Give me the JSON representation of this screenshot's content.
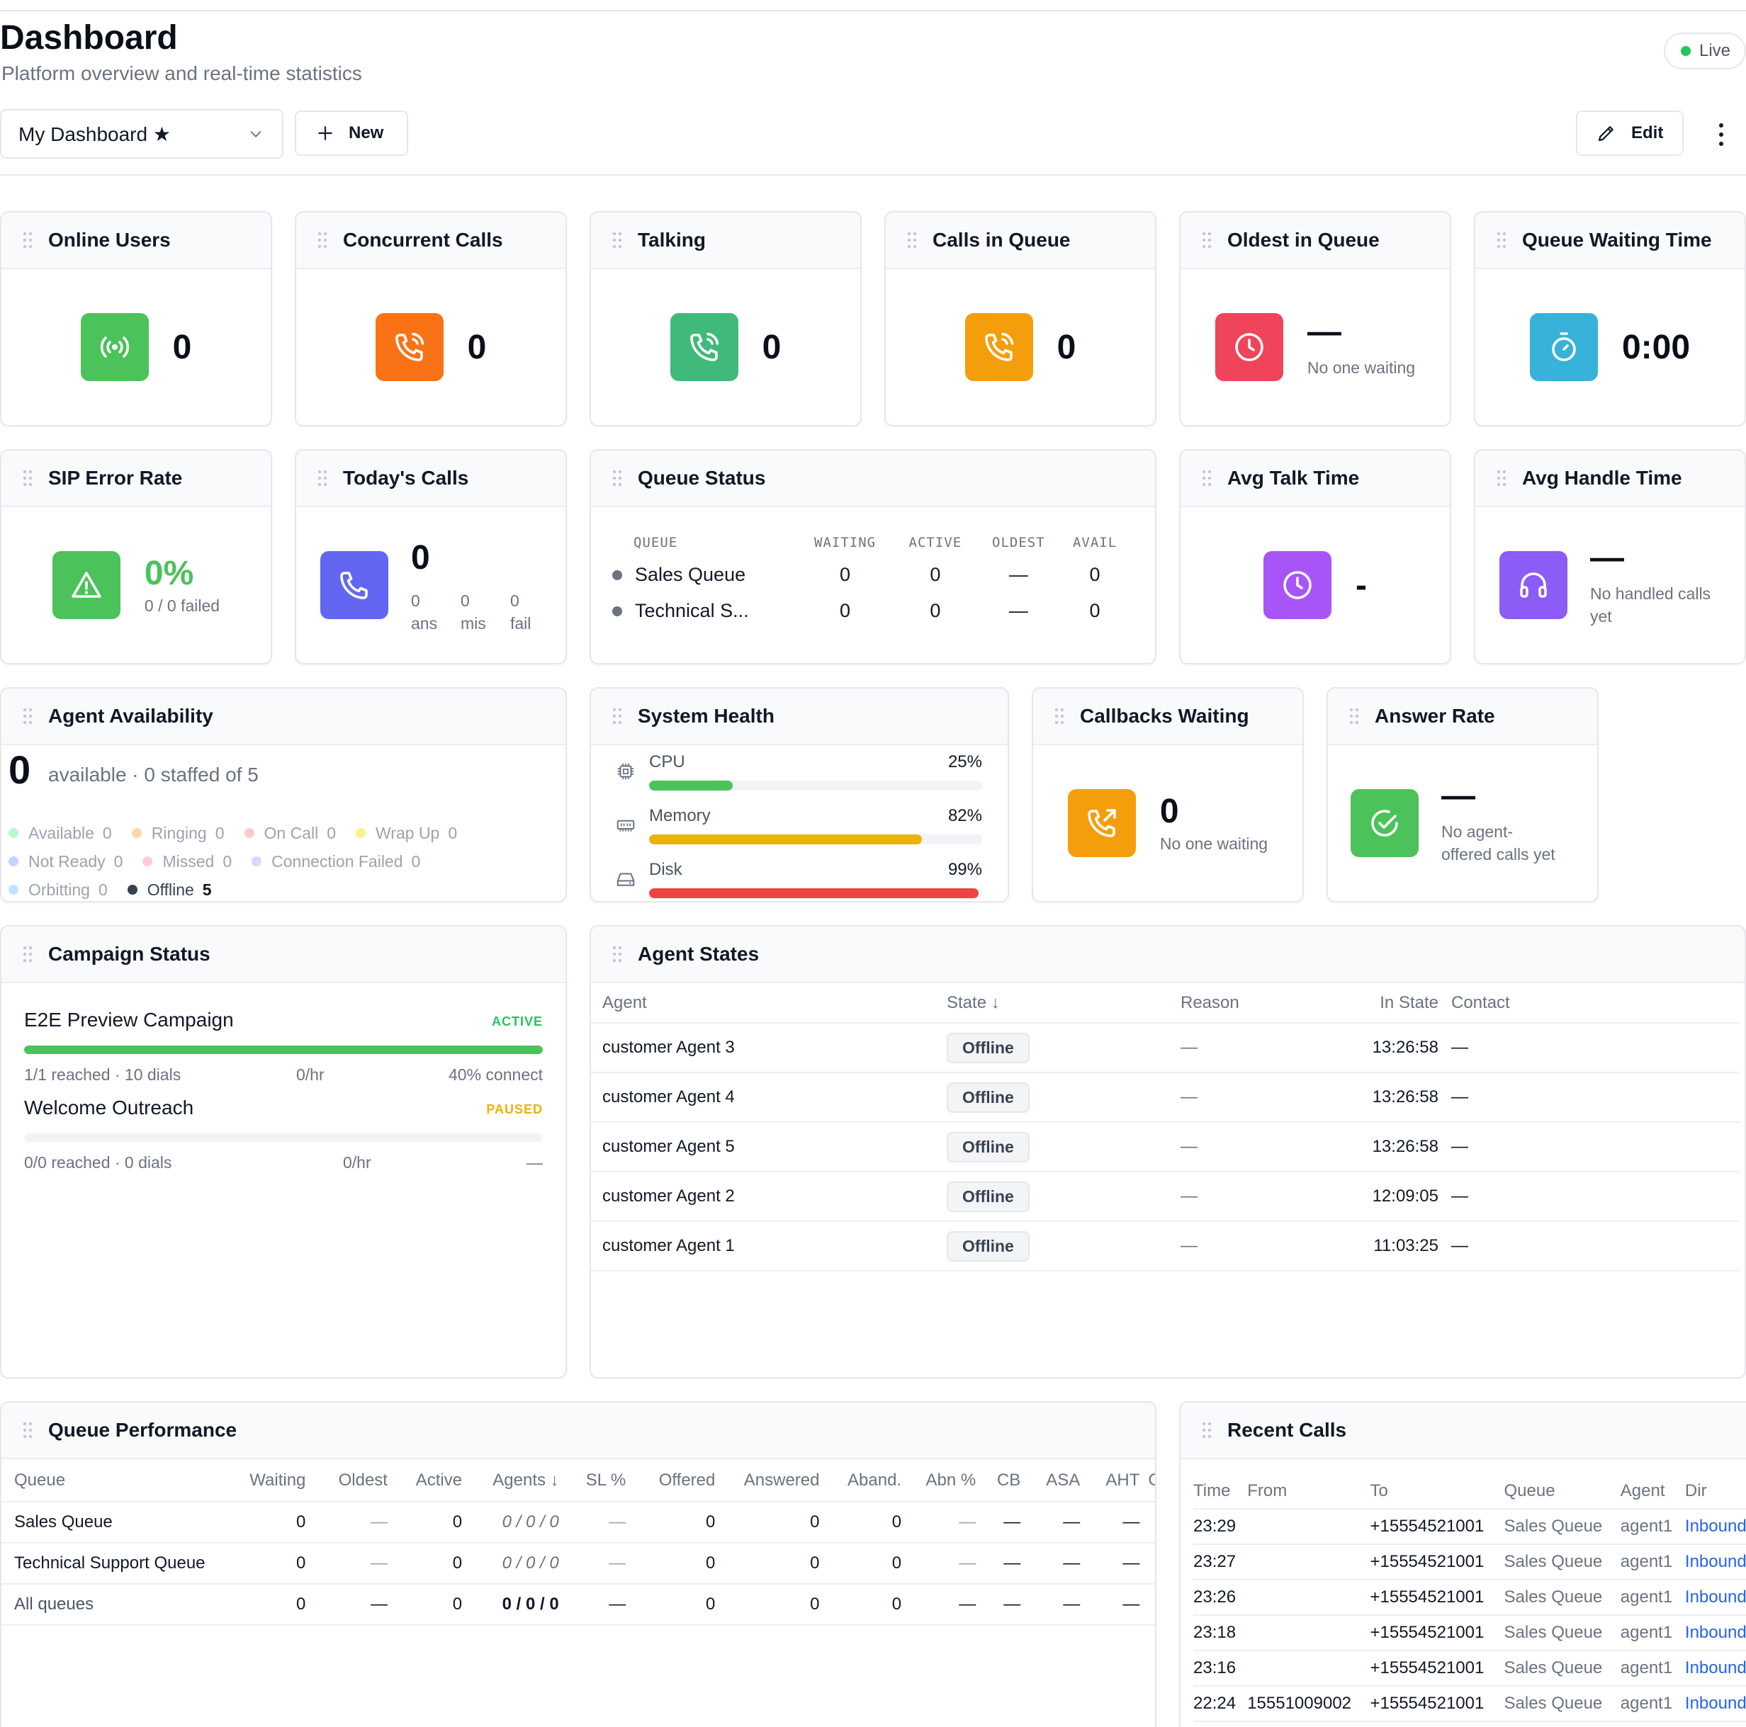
{
  "header": {
    "title": "Dashboard",
    "subtitle": "Platform overview and real-time statistics",
    "live_label": "Live"
  },
  "toolbar": {
    "dashboard_select": "My Dashboard ★",
    "new_label": "New",
    "edit_label": "Edit"
  },
  "colors": {
    "green": "#4cc25a",
    "orange": "#f97316",
    "teal_green": "#3fba7a",
    "amber": "#f59e0b",
    "red": "#ef4459",
    "cyan": "#38b2d8",
    "indigo": "#6366f1",
    "purple": "#a855f7",
    "violet": "#8b5cf6"
  },
  "cards": {
    "online_users": {
      "title": "Online Users",
      "value": "0",
      "icon": "broadcast-icon"
    },
    "concurrent_calls": {
      "title": "Concurrent Calls",
      "value": "0",
      "icon": "phone-ringing-icon"
    },
    "talking": {
      "title": "Talking",
      "value": "0",
      "icon": "phone-ringing-icon"
    },
    "calls_in_queue": {
      "title": "Calls in Queue",
      "value": "0",
      "icon": "phone-ringing-icon"
    },
    "oldest_in_queue": {
      "title": "Oldest in Queue",
      "value": "—",
      "sub": "No one waiting",
      "icon": "clock-icon"
    },
    "queue_waiting_time": {
      "title": "Queue Waiting Time",
      "value": "0:00",
      "icon": "stopwatch-icon"
    },
    "sip_error_rate": {
      "title": "SIP Error Rate",
      "value": "0%",
      "sub": "0 / 0 failed",
      "icon": "warning-icon"
    },
    "todays_calls": {
      "title": "Today's Calls",
      "value": "0",
      "breakdown": [
        {
          "value": "0",
          "label": "ans"
        },
        {
          "value": "0",
          "label": "mis"
        },
        {
          "value": "0",
          "label": "fail"
        }
      ],
      "icon": "phone-icon"
    },
    "queue_status": {
      "title": "Queue Status",
      "columns": [
        "QUEUE",
        "WAITING",
        "ACTIVE",
        "OLDEST",
        "AVAIL"
      ],
      "rows": [
        {
          "queue": "Sales Queue",
          "waiting": "0",
          "active": "0",
          "oldest": "—",
          "avail": "0"
        },
        {
          "queue": "Technical S...",
          "waiting": "0",
          "active": "0",
          "oldest": "—",
          "avail": "0"
        }
      ]
    },
    "avg_talk_time": {
      "title": "Avg Talk Time",
      "value": "-",
      "icon": "clock-icon"
    },
    "avg_handle_time": {
      "title": "Avg Handle Time",
      "value": "—",
      "sub_line1": "No handled calls",
      "sub_line2": "yet",
      "icon": "headphones-icon"
    },
    "agent_availability": {
      "title": "Agent Availability",
      "value": "0",
      "summary": "available · 0 staffed of 5",
      "legend": [
        [
          {
            "label": "Available",
            "count": "0",
            "color": "#bbf7d0"
          },
          {
            "label": "Ringing",
            "count": "0",
            "color": "#fed7aa"
          },
          {
            "label": "On Call",
            "count": "0",
            "color": "#fecaca"
          },
          {
            "label": "Wrap Up",
            "count": "0",
            "color": "#fef08a"
          }
        ],
        [
          {
            "label": "Not Ready",
            "count": "0",
            "color": "#c7d2fe"
          },
          {
            "label": "Missed",
            "count": "0",
            "color": "#fecdd3"
          },
          {
            "label": "Connection Failed",
            "count": "0",
            "color": "#ddd6fe"
          }
        ],
        [
          {
            "label": "Orbitting",
            "count": "0",
            "color": "#bae6fd"
          },
          {
            "label": "Offline",
            "count": "5",
            "color": "#374151"
          }
        ]
      ]
    },
    "system_health": {
      "title": "System Health",
      "metrics": [
        {
          "label": "CPU",
          "pct_label": "25%",
          "pct": 25,
          "color": "#4cc25a",
          "icon": "cpu-icon"
        },
        {
          "label": "Memory",
          "pct_label": "82%",
          "pct": 82,
          "color": "#eab308",
          "icon": "memory-icon"
        },
        {
          "label": "Disk",
          "pct_label": "99%",
          "pct": 99,
          "color": "#ef4444",
          "icon": "disk-icon"
        }
      ]
    },
    "callbacks_waiting": {
      "title": "Callbacks Waiting",
      "value": "0",
      "sub": "No one waiting",
      "icon": "phone-callback-icon"
    },
    "answer_rate": {
      "title": "Answer Rate",
      "value": "—",
      "sub_line1": "No agent-",
      "sub_line2": "offered calls yet",
      "icon": "check-circle-icon"
    },
    "campaign_status": {
      "title": "Campaign Status",
      "campaigns": [
        {
          "name": "E2E Preview Campaign",
          "status": "ACTIVE",
          "status_color": "#22c55e",
          "progress": 100,
          "reached": "1/1 reached · 10 dials",
          "rate": "0/hr",
          "connect": "40% connect"
        },
        {
          "name": "Welcome Outreach",
          "status": "PAUSED",
          "status_color": "#eab308",
          "progress": 0,
          "reached": "0/0 reached · 0 dials",
          "rate": "0/hr",
          "connect": "—"
        }
      ]
    },
    "agent_states": {
      "title": "Agent States",
      "columns": {
        "agent": "Agent",
        "state": "State ↓",
        "reason": "Reason",
        "in_state": "In State",
        "contact": "Contact"
      },
      "rows": [
        {
          "agent": "customer Agent 3",
          "state": "Offline",
          "reason": "—",
          "in_state": "13:26:58",
          "contact": "—"
        },
        {
          "agent": "customer Agent 4",
          "state": "Offline",
          "reason": "—",
          "in_state": "13:26:58",
          "contact": "—"
        },
        {
          "agent": "customer Agent 5",
          "state": "Offline",
          "reason": "—",
          "in_state": "13:26:58",
          "contact": "—"
        },
        {
          "agent": "customer Agent 2",
          "state": "Offline",
          "reason": "—",
          "in_state": "12:09:05",
          "contact": "—"
        },
        {
          "agent": "customer Agent 1",
          "state": "Offline",
          "reason": "—",
          "in_state": "11:03:25",
          "contact": "—"
        }
      ]
    },
    "queue_performance": {
      "title": "Queue Performance",
      "columns": [
        "Queue",
        "Waiting",
        "Oldest",
        "Active",
        "Agents ↓",
        "SL %",
        "Offered",
        "Answered",
        "Aband.",
        "Abn %",
        "CB",
        "ASA",
        "AHT",
        "C"
      ],
      "rows": [
        [
          "Sales Queue",
          "0",
          "—",
          "0",
          "0 / 0 / 0",
          "—",
          "0",
          "0",
          "0",
          "—",
          "—",
          "—",
          "—",
          ""
        ],
        [
          "Technical Support Queue",
          "0",
          "—",
          "0",
          "0 / 0 / 0",
          "—",
          "0",
          "0",
          "0",
          "—",
          "—",
          "—",
          "—",
          ""
        ],
        [
          "All queues",
          "0",
          "—",
          "0",
          "0 / 0 / 0",
          "—",
          "0",
          "0",
          "0",
          "—",
          "—",
          "—",
          "—",
          ""
        ]
      ]
    },
    "recent_calls": {
      "title": "Recent Calls",
      "columns": [
        "Time",
        "From",
        "To",
        "Queue",
        "Agent",
        "Dir"
      ],
      "rows": [
        {
          "time": "23:29",
          "from": "",
          "to": "+15554521001",
          "queue": "Sales Queue",
          "agent": "agent1",
          "dir": "Inbound"
        },
        {
          "time": "23:27",
          "from": "",
          "to": "+15554521001",
          "queue": "Sales Queue",
          "agent": "agent1",
          "dir": "Inbound"
        },
        {
          "time": "23:26",
          "from": "",
          "to": "+15554521001",
          "queue": "Sales Queue",
          "agent": "agent1",
          "dir": "Inbound"
        },
        {
          "time": "23:18",
          "from": "",
          "to": "+15554521001",
          "queue": "Sales Queue",
          "agent": "agent1",
          "dir": "Inbound"
        },
        {
          "time": "23:16",
          "from": "",
          "to": "+15554521001",
          "queue": "Sales Queue",
          "agent": "agent1",
          "dir": "Inbound"
        },
        {
          "time": "22:24",
          "from": "15551009002",
          "to": "+15554521001",
          "queue": "Sales Queue",
          "agent": "agent1",
          "dir": "Inbound"
        }
      ]
    }
  }
}
